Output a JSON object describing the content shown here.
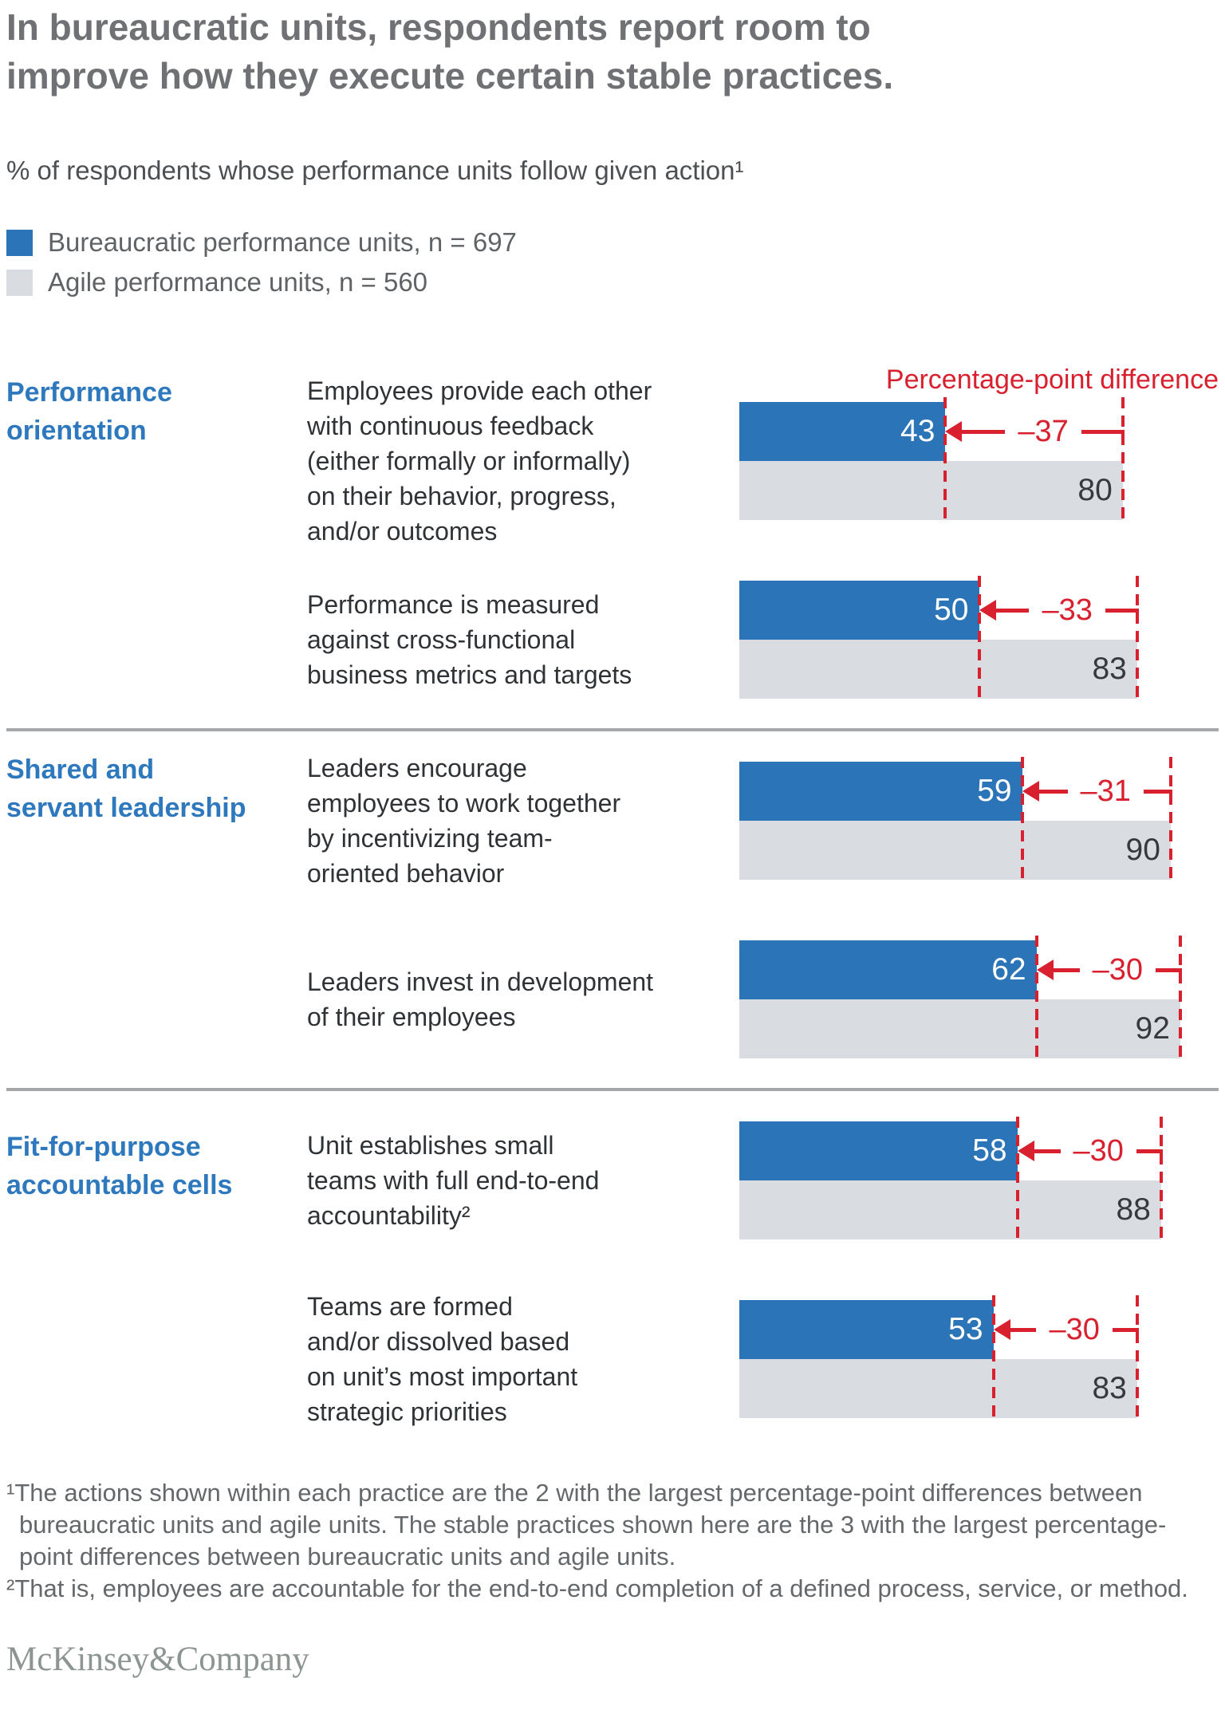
{
  "title": "In bureaucratic units, respondents report room to improve how they execute certain stable practices.",
  "subtitle": "% of respondents whose performance units follow given action¹",
  "legend": [
    {
      "label": "Bureaucratic performance units, n = 697",
      "color": "#2B74B8"
    },
    {
      "label": "Agile performance units, n = 560",
      "color": "#D9DDE2"
    }
  ],
  "diff_header": "Percentage-point difference",
  "colors": {
    "bar_blue": "#2B74B8",
    "bar_gray": "#D9DDE2",
    "accent_red": "#D8202F",
    "category_blue": "#2E78BE",
    "title_gray": "#6F7174",
    "divider_gray": "#A5A7A9"
  },
  "chart_data": {
    "type": "bar",
    "unit": "% of respondents",
    "axis_max": 100,
    "series_names": [
      "Bureaucratic performance units",
      "Agile performance units"
    ],
    "sections": [
      {
        "category": "Performance\norientation",
        "rows": [
          {
            "action": "Employees provide each other\nwith continuous feedback\n(either formally or informally)\non their behavior, progress,\nand/or outcomes",
            "bureaucratic": 43,
            "agile": 80,
            "difference": -37,
            "diff_label": "–37"
          },
          {
            "action": "Performance is measured\nagainst cross-functional\nbusiness metrics and targets",
            "bureaucratic": 50,
            "agile": 83,
            "difference": -33,
            "diff_label": "–33"
          }
        ]
      },
      {
        "category": "Shared and\nservant leadership",
        "rows": [
          {
            "action": "Leaders encourage\nemployees to work together\nby incentivizing team-\noriented behavior",
            "bureaucratic": 59,
            "agile": 90,
            "difference": -31,
            "diff_label": "–31"
          },
          {
            "action": "Leaders invest in development\nof their employees",
            "bureaucratic": 62,
            "agile": 92,
            "difference": -30,
            "diff_label": "–30"
          }
        ]
      },
      {
        "category": "Fit-for-purpose\naccountable cells",
        "rows": [
          {
            "action": "Unit establishes small\nteams with full end-to-end\naccountability²",
            "bureaucratic": 58,
            "agile": 88,
            "difference": -30,
            "diff_label": "–30"
          },
          {
            "action": "Teams are formed\nand/or dissolved based\non unit’s most important\nstrategic priorities",
            "bureaucratic": 53,
            "agile": 83,
            "difference": -30,
            "diff_label": "–30"
          }
        ]
      }
    ]
  },
  "footnotes": [
    "¹The actions shown within each practice are the 2 with the largest percentage-point differences between bureaucratic units and agile units. The stable practices shown here are the 3 with the largest percentage-point differences between bureaucratic units and agile units.",
    "²That is, employees are accountable for the end-to-end completion of a defined process, service, or method."
  ],
  "logo": "McKinsey&Company"
}
